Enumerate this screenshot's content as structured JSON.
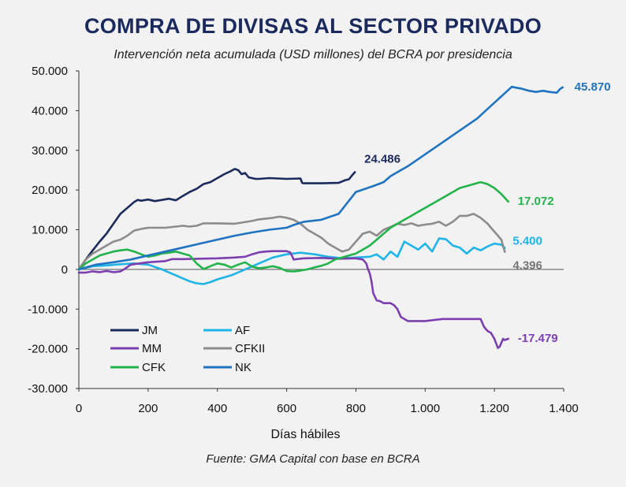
{
  "chart_data": {
    "type": "line",
    "title": "COMPRA DE DIVISAS AL SECTOR PRIVADO",
    "subtitle": "Intervención neta acumulada (USD millones) del BCRA por presidencia",
    "source": "Fuente: GMA Capital con base en BCRA",
    "xlabel": "Días hábiles",
    "ylabel": "",
    "xlim": [
      0,
      1400
    ],
    "ylim": [
      -30000,
      50000
    ],
    "xticks": [
      0,
      200,
      400,
      600,
      800,
      1000,
      1200,
      1400
    ],
    "xtick_labels": [
      "0",
      "200",
      "400",
      "600",
      "800",
      "1.000",
      "1.200",
      "1.400"
    ],
    "yticks": [
      50000,
      40000,
      30000,
      20000,
      10000,
      0,
      -10000,
      -20000,
      -30000
    ],
    "ytick_labels": [
      "50.000",
      "40.000",
      "30.000",
      "20.000",
      "10.000",
      "0",
      "-10.000",
      "-20.000",
      "-30.000"
    ],
    "series": [
      {
        "name": "JM",
        "color": "#1b2a5c",
        "end_label": "24.486",
        "x": [
          0,
          20,
          40,
          60,
          80,
          100,
          120,
          140,
          160,
          170,
          180,
          200,
          220,
          240,
          260,
          280,
          300,
          320,
          340,
          360,
          380,
          400,
          420,
          440,
          450,
          460,
          470,
          480,
          490,
          500,
          510,
          520,
          550,
          600,
          640,
          645,
          650,
          700,
          750,
          770,
          780,
          790,
          797
        ],
        "y": [
          0,
          2500,
          4800,
          7000,
          9000,
          11500,
          14000,
          15500,
          17000,
          17500,
          17300,
          17600,
          17200,
          17500,
          17800,
          17400,
          18500,
          19500,
          20300,
          21500,
          22000,
          23000,
          24000,
          24800,
          25300,
          25000,
          24000,
          24300,
          23200,
          23000,
          22800,
          22800,
          23000,
          22800,
          22900,
          21800,
          21700,
          21700,
          21800,
          22500,
          22700,
          23800,
          24486
        ]
      },
      {
        "name": "AF",
        "color": "#1eb4e6",
        "end_label": "5.400",
        "x": [
          0,
          40,
          80,
          120,
          160,
          200,
          240,
          280,
          320,
          340,
          360,
          380,
          400,
          440,
          480,
          520,
          560,
          600,
          640,
          680,
          720,
          760,
          800,
          840,
          860,
          880,
          900,
          920,
          940,
          960,
          980,
          1000,
          1020,
          1040,
          1060,
          1080,
          1100,
          1120,
          1140,
          1160,
          1180,
          1200,
          1220,
          1230
        ],
        "y": [
          0,
          800,
          1000,
          1300,
          1500,
          1200,
          0,
          -1500,
          -3000,
          -3500,
          -3700,
          -3200,
          -2500,
          -1500,
          0,
          1500,
          3000,
          3800,
          4200,
          3800,
          3200,
          2800,
          3000,
          3200,
          3800,
          2500,
          4500,
          3200,
          7000,
          6000,
          5000,
          6500,
          4500,
          7800,
          7600,
          6000,
          5500,
          4000,
          5500,
          4800,
          5800,
          6500,
          6200,
          5400
        ]
      },
      {
        "name": "MM",
        "color": "#7b3fb0",
        "end_label": "-17.479",
        "x": [
          0,
          20,
          40,
          60,
          80,
          100,
          120,
          130,
          150,
          200,
          250,
          270,
          300,
          350,
          400,
          450,
          480,
          500,
          520,
          540,
          560,
          580,
          600,
          610,
          615,
          620,
          650,
          700,
          750,
          800,
          820,
          830,
          835,
          840,
          845,
          850,
          860,
          870,
          880,
          900,
          910,
          920,
          930,
          950,
          1000,
          1050,
          1100,
          1150,
          1160,
          1170,
          1180,
          1190,
          1200,
          1210,
          1215,
          1220,
          1225,
          1230,
          1240
        ],
        "y": [
          -800,
          -800,
          -500,
          -700,
          -400,
          -700,
          -500,
          0,
          1200,
          1800,
          2100,
          2600,
          2600,
          2700,
          2800,
          3000,
          3200,
          3800,
          4300,
          4500,
          4600,
          4600,
          4600,
          4300,
          3500,
          2500,
          2800,
          2900,
          2700,
          2800,
          2500,
          1500,
          0,
          -1000,
          -3000,
          -6000,
          -7800,
          -8000,
          -8500,
          -8500,
          -9000,
          -10000,
          -12000,
          -13000,
          -13000,
          -12500,
          -12500,
          -12500,
          -12500,
          -14500,
          -15500,
          -16000,
          -17500,
          -19800,
          -19500,
          -18500,
          -17500,
          -17800,
          -17479
        ]
      },
      {
        "name": "CFKII",
        "color": "#8c8c8c",
        "end_label": "4.396",
        "x": [
          0,
          20,
          40,
          60,
          80,
          100,
          120,
          140,
          160,
          180,
          200,
          250,
          300,
          320,
          340,
          360,
          400,
          450,
          500,
          520,
          540,
          560,
          580,
          600,
          620,
          640,
          660,
          680,
          700,
          720,
          740,
          760,
          780,
          800,
          820,
          840,
          860,
          880,
          900,
          920,
          940,
          960,
          980,
          1000,
          1020,
          1040,
          1060,
          1080,
          1100,
          1120,
          1140,
          1160,
          1180,
          1200,
          1220,
          1230
        ],
        "y": [
          0,
          2500,
          4000,
          5000,
          6000,
          7000,
          7500,
          8500,
          9800,
          10200,
          10500,
          10500,
          11000,
          10800,
          11000,
          11600,
          11600,
          11500,
          12200,
          12600,
          12800,
          13000,
          13300,
          13000,
          12500,
          11500,
          10000,
          9000,
          8000,
          6500,
          5500,
          4500,
          5000,
          7000,
          9000,
          9500,
          8500,
          10000,
          10700,
          11500,
          11200,
          11600,
          11000,
          11300,
          11500,
          12000,
          11000,
          12000,
          13500,
          13500,
          14000,
          13000,
          11500,
          9500,
          7500,
          4396
        ]
      },
      {
        "name": "CFK",
        "color": "#22b34a",
        "end_label": "17.072",
        "x": [
          0,
          20,
          40,
          60,
          80,
          100,
          120,
          140,
          160,
          180,
          200,
          220,
          240,
          260,
          280,
          300,
          320,
          340,
          360,
          380,
          400,
          420,
          440,
          460,
          480,
          500,
          520,
          540,
          560,
          580,
          600,
          620,
          640,
          660,
          680,
          700,
          720,
          740,
          760,
          780,
          800,
          820,
          840,
          860,
          880,
          900,
          920,
          940,
          960,
          980,
          1000,
          1020,
          1040,
          1060,
          1080,
          1100,
          1120,
          1140,
          1160,
          1180,
          1200,
          1220,
          1240
        ],
        "y": [
          0,
          1500,
          2500,
          3500,
          4000,
          4500,
          4800,
          5000,
          4500,
          3800,
          3200,
          3500,
          4000,
          4200,
          4500,
          4000,
          3500,
          1500,
          100,
          800,
          1500,
          1200,
          500,
          1200,
          1800,
          700,
          300,
          500,
          800,
          400,
          -400,
          -500,
          -300,
          0,
          500,
          900,
          1500,
          2500,
          3000,
          3500,
          4000,
          5000,
          6000,
          7500,
          9000,
          10500,
          11500,
          12500,
          13500,
          14500,
          15500,
          16500,
          17500,
          18500,
          19500,
          20500,
          21000,
          21500,
          22000,
          21500,
          20500,
          19000,
          17072
        ]
      },
      {
        "name": "NK",
        "color": "#1f73c1",
        "end_label": "45.870",
        "x": [
          0,
          50,
          100,
          150,
          200,
          250,
          300,
          350,
          400,
          450,
          500,
          550,
          600,
          620,
          650,
          700,
          750,
          800,
          850,
          880,
          900,
          950,
          1000,
          1050,
          1100,
          1150,
          1200,
          1250,
          1280,
          1300,
          1320,
          1340,
          1360,
          1380,
          1390,
          1397
        ],
        "y": [
          0,
          1200,
          1800,
          2500,
          3500,
          4500,
          5500,
          6500,
          7500,
          8500,
          9300,
          10000,
          10500,
          11200,
          12000,
          12500,
          14000,
          19500,
          21000,
          22000,
          23500,
          26000,
          29000,
          32000,
          35000,
          38000,
          42000,
          46000,
          45500,
          45000,
          44700,
          45000,
          44700,
          44500,
          45500,
          45870
        ]
      }
    ],
    "legend": {
      "placement": "bottom-left",
      "order": [
        "JM",
        "AF",
        "MM",
        "CFKII",
        "CFK",
        "NK"
      ]
    }
  }
}
